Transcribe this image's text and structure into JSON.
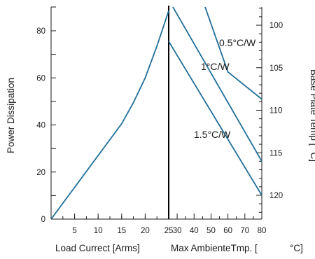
{
  "chart_data": {
    "type": "line",
    "power_curve": {
      "x": [
        0,
        5,
        10,
        15,
        17.5,
        20,
        22.5,
        25
      ],
      "y": [
        0,
        13.5,
        27,
        40.5,
        49.5,
        60,
        73.5,
        88.5
      ]
    },
    "thermal_lines": [
      {
        "label": "0.5°C/W",
        "x": [
          25,
          45,
          60,
          80
        ],
        "y": [
          97,
          97,
          105.5,
          108.7
        ],
        "x_range": [
          25,
          80
        ]
      },
      {
        "label": "1°C/W",
        "x": [
          25,
          80
        ],
        "y": [
          97,
          116
        ],
        "x_range": [
          25,
          80
        ]
      },
      {
        "label": "1.5°C/W",
        "x": [
          25,
          80
        ],
        "y": [
          101.9,
          120
        ],
        "x_range": [
          25,
          80
        ]
      }
    ],
    "divider_x": 25,
    "left_axis": {
      "label": "Power Dissipation",
      "range": [
        0,
        90
      ],
      "ticks": [
        "0",
        "20",
        "40",
        "60",
        "80"
      ]
    },
    "right_axis": {
      "label": "Base Plate Temp [  °C]",
      "range": [
        97.5,
        123.5
      ],
      "ticks": [
        "100",
        "105",
        "110",
        "115",
        "120"
      ]
    },
    "x_axis": {
      "range": [
        0,
        80
      ],
      "ticks": [
        "5",
        "10",
        "15",
        "20",
        "25",
        "30",
        "40",
        "50",
        "60",
        "70",
        "80"
      ],
      "label_left": "Load Currect [Arms]",
      "label_right": "Max AmbienteTmp. [",
      "label_unit": "°C]"
    },
    "annotations": [
      "0.5°C/W",
      "1°C/W",
      "1.5°C/W"
    ],
    "colors": {
      "curve": "#1f6e99",
      "axis": "#1a1a1a",
      "divider": "#000000"
    }
  }
}
